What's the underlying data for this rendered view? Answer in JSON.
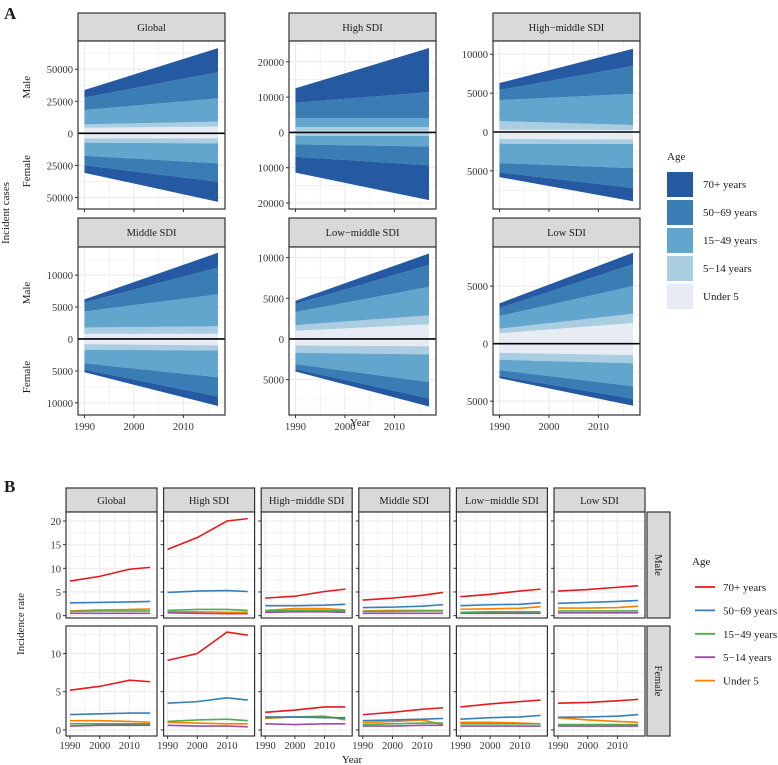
{
  "figure": {
    "panel_a_letter": "A",
    "panel_b_letter": "B"
  },
  "chart_data": [
    {
      "type": "area",
      "stacked": true,
      "xlabel": "Year",
      "ylabel": "Incident cases",
      "row_labels": [
        "Male",
        "Female"
      ],
      "x_ticks": [
        1990,
        2000,
        2010
      ],
      "years": [
        1990,
        2017
      ],
      "legend": {
        "title": "Age",
        "position": "right",
        "entries": [
          "70+ years",
          "50−69 years",
          "15−49 years",
          "5−14 years",
          "Under 5"
        ]
      },
      "colors": [
        "#2559a1",
        "#3a7db5",
        "#63a6cd",
        "#aacde1",
        "#e6ebf4"
      ],
      "facets": [
        {
          "name": "Global",
          "ylim_male": 72000,
          "ylim_female": 59000,
          "y_ticks_male": [
            25000,
            50000
          ],
          "y_ticks_female": [
            25000,
            50000
          ],
          "male": [
            [
              6000,
              18700
            ],
            [
              9600,
              20400
            ],
            [
              11200,
              18200
            ],
            [
              2600,
              3900
            ],
            [
              4400,
              5200
            ]
          ],
          "female": [
            [
              6000,
              15600
            ],
            [
              7300,
              14400
            ],
            [
              10200,
              15600
            ],
            [
              3400,
              3900
            ],
            [
              3900,
              3900
            ]
          ]
        },
        {
          "name": "High SDI",
          "ylim_male": 25900,
          "ylim_female": 21700,
          "y_ticks_male": [
            10000,
            20000
          ],
          "y_ticks_female": [
            10000,
            20000
          ],
          "male": [
            [
              4100,
              12500
            ],
            [
              4400,
              7400
            ],
            [
              2500,
              2500
            ],
            [
              1200,
              1200
            ],
            [
              300,
              300
            ]
          ],
          "female": [
            [
              4500,
              9900
            ],
            [
              3500,
              5300
            ],
            [
              2400,
              3000
            ],
            [
              700,
              700
            ],
            [
              300,
              300
            ]
          ]
        },
        {
          "name": "High−middle SDI",
          "ylim_male": 11700,
          "ylim_female": 9900,
          "y_ticks_male": [
            5000,
            10000
          ],
          "y_ticks_female": [
            5000
          ],
          "male": [
            [
              900,
              2200
            ],
            [
              1300,
              3600
            ],
            [
              2700,
              4000
            ],
            [
              1100,
              650
            ],
            [
              300,
              250
            ]
          ],
          "female": [
            [
              600,
              1700
            ],
            [
              1200,
              2550
            ],
            [
              2500,
              3100
            ],
            [
              600,
              600
            ],
            [
              900,
              950
            ]
          ]
        },
        {
          "name": "Middle SDI",
          "ylim_male": 14400,
          "ylim_female": 11900,
          "y_ticks_male": [
            5000,
            10000
          ],
          "y_ticks_female": [
            5000,
            10000
          ],
          "male": [
            [
              500,
              2300
            ],
            [
              1400,
              4200
            ],
            [
              2500,
              5000
            ],
            [
              1000,
              1200
            ],
            [
              800,
              800
            ]
          ],
          "female": [
            [
              400,
              1500
            ],
            [
              1000,
              3000
            ],
            [
              2100,
              4200
            ],
            [
              900,
              800
            ],
            [
              800,
              1000
            ]
          ]
        },
        {
          "name": "Low−middle SDI",
          "ylim_male": 11300,
          "ylim_female": 9350,
          "y_ticks_male": [
            5000,
            10000
          ],
          "y_ticks_female": [
            5000
          ],
          "male": [
            [
              400,
              1400
            ],
            [
              1000,
              2700
            ],
            [
              1600,
              3500
            ],
            [
              700,
              1100
            ],
            [
              1000,
              1800
            ]
          ],
          "female": [
            [
              300,
              1000
            ],
            [
              600,
              2000
            ],
            [
              1400,
              3400
            ],
            [
              900,
              1000
            ],
            [
              800,
              900
            ]
          ]
        },
        {
          "name": "Low SDI",
          "ylim_male": 8400,
          "ylim_female": 6200,
          "y_ticks_male": [
            5000
          ],
          "y_ticks_female": [
            5000
          ],
          "male": [
            [
              400,
              1000
            ],
            [
              700,
              1900
            ],
            [
              1100,
              2400
            ],
            [
              400,
              800
            ],
            [
              900,
              1800
            ]
          ],
          "female": [
            [
              200,
              600
            ],
            [
              500,
              1100
            ],
            [
              900,
              2000
            ],
            [
              600,
              700
            ],
            [
              800,
              1000
            ]
          ]
        }
      ]
    },
    {
      "type": "line",
      "xlabel": "Year",
      "ylabel": "Incidence rate",
      "row_labels": [
        "Male",
        "Female"
      ],
      "x_ticks": [
        1990,
        2000,
        2010
      ],
      "years": [
        1990,
        2000,
        2010,
        2017
      ],
      "ylim_male": [
        -0.5,
        21.9
      ],
      "ylim_female": [
        -0.8,
        13.6
      ],
      "y_ticks_male": [
        0,
        5,
        10,
        15,
        20
      ],
      "y_ticks_female": [
        0,
        5,
        10
      ],
      "legend": {
        "title": "Age",
        "position": "right",
        "entries": [
          "70+ years",
          "50−69 years",
          "15−49 years",
          "5−14 years",
          "Under 5"
        ]
      },
      "colors": [
        "#e41a1c",
        "#377eb8",
        "#4daf4a",
        "#984ea3",
        "#ff7f00"
      ],
      "facets": [
        {
          "name": "Global",
          "male": [
            [
              7.3,
              8.3,
              9.8,
              10.2
            ],
            [
              2.7,
              2.8,
              2.9,
              3.0
            ],
            [
              0.9,
              1.0,
              1.0,
              1.0
            ],
            [
              0.5,
              0.5,
              0.5,
              0.5
            ],
            [
              1.0,
              1.2,
              1.3,
              1.4
            ]
          ],
          "female": [
            [
              5.2,
              5.7,
              6.5,
              6.3
            ],
            [
              2.0,
              2.1,
              2.2,
              2.2
            ],
            [
              0.8,
              0.8,
              0.8,
              0.8
            ],
            [
              0.5,
              0.6,
              0.6,
              0.6
            ],
            [
              1.2,
              1.2,
              1.1,
              1.0
            ]
          ]
        },
        {
          "name": "High SDI",
          "male": [
            [
              14.0,
              16.5,
              20.0,
              20.5
            ],
            [
              4.9,
              5.2,
              5.3,
              5.1
            ],
            [
              1.1,
              1.3,
              1.3,
              1.1
            ],
            [
              0.6,
              0.5,
              0.4,
              0.4
            ],
            [
              0.8,
              0.8,
              0.7,
              0.7
            ]
          ],
          "female": [
            [
              9.1,
              10.0,
              12.8,
              12.4
            ],
            [
              3.5,
              3.7,
              4.2,
              3.9
            ],
            [
              1.1,
              1.3,
              1.4,
              1.2
            ],
            [
              0.6,
              0.5,
              0.5,
              0.4
            ],
            [
              1.0,
              0.9,
              0.8,
              0.8
            ]
          ]
        },
        {
          "name": "High−middle SDI",
          "male": [
            [
              3.7,
              4.1,
              5.1,
              5.6
            ],
            [
              2.1,
              2.1,
              2.2,
              2.4
            ],
            [
              1.0,
              1.1,
              1.1,
              1.0
            ],
            [
              0.7,
              0.8,
              0.8,
              0.7
            ],
            [
              1.1,
              1.5,
              1.5,
              1.2
            ]
          ],
          "female": [
            [
              2.3,
              2.6,
              3.0,
              3.0
            ],
            [
              1.7,
              1.7,
              1.6,
              1.6
            ],
            [
              1.6,
              1.7,
              1.7,
              1.5
            ],
            [
              0.8,
              0.7,
              0.8,
              0.8
            ],
            [
              1.5,
              1.7,
              1.8,
              1.3
            ]
          ]
        },
        {
          "name": "Middle SDI",
          "male": [
            [
              3.3,
              3.7,
              4.3,
              4.9
            ],
            [
              1.7,
              1.8,
              2.0,
              2.3
            ],
            [
              0.9,
              0.9,
              1.0,
              1.0
            ],
            [
              0.5,
              0.5,
              0.5,
              0.5
            ],
            [
              1.0,
              1.1,
              1.1,
              1.1
            ]
          ],
          "female": [
            [
              2.0,
              2.3,
              2.7,
              2.9
            ],
            [
              1.2,
              1.3,
              1.4,
              1.5
            ],
            [
              0.7,
              0.8,
              0.9,
              0.9
            ],
            [
              0.5,
              0.5,
              0.6,
              0.6
            ],
            [
              0.95,
              1.1,
              1.3,
              0.7
            ]
          ]
        },
        {
          "name": "Low−middle SDI",
          "male": [
            [
              4.0,
              4.5,
              5.2,
              5.6
            ],
            [
              2.1,
              2.3,
              2.4,
              2.7
            ],
            [
              0.7,
              0.8,
              0.8,
              0.8
            ],
            [
              0.5,
              0.5,
              0.5,
              0.5
            ],
            [
              1.35,
              1.45,
              1.55,
              1.9
            ]
          ],
          "female": [
            [
              3.0,
              3.4,
              3.7,
              3.9
            ],
            [
              1.4,
              1.6,
              1.7,
              1.9
            ],
            [
              0.8,
              0.8,
              0.8,
              0.8
            ],
            [
              0.5,
              0.5,
              0.5,
              0.5
            ],
            [
              1.0,
              1.0,
              0.9,
              0.8
            ]
          ]
        },
        {
          "name": "Low SDI",
          "male": [
            [
              5.2,
              5.5,
              6.0,
              6.3
            ],
            [
              2.6,
              2.8,
              3.0,
              3.2
            ],
            [
              1.0,
              1.0,
              1.0,
              1.0
            ],
            [
              0.6,
              0.6,
              0.6,
              0.6
            ],
            [
              1.6,
              1.6,
              1.7,
              2.0
            ]
          ],
          "female": [
            [
              3.5,
              3.6,
              3.8,
              4.0
            ],
            [
              1.65,
              1.7,
              1.8,
              2.0
            ],
            [
              0.7,
              0.7,
              0.7,
              0.7
            ],
            [
              0.5,
              0.5,
              0.5,
              0.5
            ],
            [
              1.6,
              1.3,
              1.1,
              1.0
            ]
          ]
        }
      ]
    }
  ]
}
